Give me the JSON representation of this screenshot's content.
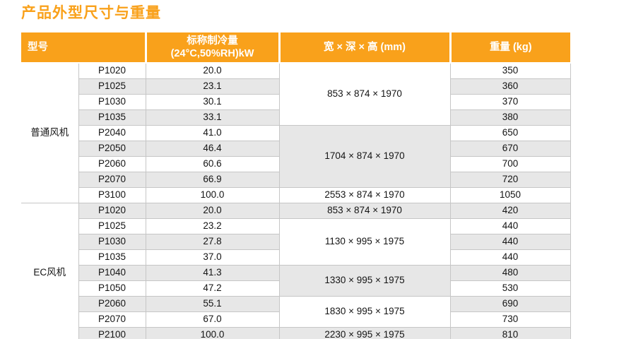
{
  "page_title": "产品外型尺寸与重量",
  "colors": {
    "accent_orange": "#F9A11B",
    "row_alt_gray": "#E7E7E7",
    "border_gray": "#C6C6C6",
    "header_text": "#FFFFFF",
    "body_text": "#141414"
  },
  "table": {
    "headers": {
      "model": "型号",
      "cooling_line1": "标称制冷量",
      "cooling_line2": "(24°C,50%RH)kW",
      "dimensions": "宽 × 深 × 高 (mm)",
      "weight": "重量 (kg)"
    },
    "groups": [
      {
        "name": "普通风机",
        "rows": [
          {
            "model": "P1020",
            "cooling": "20.0",
            "weight": "350"
          },
          {
            "model": "P1025",
            "cooling": "23.1",
            "weight": "360"
          },
          {
            "model": "P1030",
            "cooling": "30.1",
            "weight": "370"
          },
          {
            "model": "P1035",
            "cooling": "33.1",
            "weight": "380"
          },
          {
            "model": "P2040",
            "cooling": "41.0",
            "weight": "650"
          },
          {
            "model": "P2050",
            "cooling": "46.4",
            "weight": "670"
          },
          {
            "model": "P2060",
            "cooling": "60.6",
            "weight": "700"
          },
          {
            "model": "P2070",
            "cooling": "66.9",
            "weight": "720"
          },
          {
            "model": "P3100",
            "cooling": "100.0",
            "weight": "1050"
          }
        ],
        "dim_spans": [
          {
            "text": "853 × 874 × 1970",
            "rows": 4,
            "shade": "white"
          },
          {
            "text": "1704 × 874 × 1970",
            "rows": 4,
            "shade": "gray"
          },
          {
            "text": "2553 × 874 × 1970",
            "rows": 1,
            "shade": "white"
          }
        ]
      },
      {
        "name": "EC风机",
        "rows": [
          {
            "model": "P1020",
            "cooling": "20.0",
            "weight": "420"
          },
          {
            "model": "P1025",
            "cooling": "23.2",
            "weight": "440"
          },
          {
            "model": "P1030",
            "cooling": "27.8",
            "weight": "440"
          },
          {
            "model": "P1035",
            "cooling": "37.0",
            "weight": "440"
          },
          {
            "model": "P1040",
            "cooling": "41.3",
            "weight": "480"
          },
          {
            "model": "P1050",
            "cooling": "47.2",
            "weight": "530"
          },
          {
            "model": "P2060",
            "cooling": "55.1",
            "weight": "690"
          },
          {
            "model": "P2070",
            "cooling": "67.0",
            "weight": "730"
          },
          {
            "model": "P2100",
            "cooling": "100.0",
            "weight": "810"
          }
        ],
        "dim_spans": [
          {
            "text": "853 × 874 × 1970",
            "rows": 1,
            "shade": "gray"
          },
          {
            "text": "1130 × 995 × 1975",
            "rows": 3,
            "shade": "white"
          },
          {
            "text": "1330 × 995 × 1975",
            "rows": 2,
            "shade": "gray"
          },
          {
            "text": "1830 × 995 × 1975",
            "rows": 2,
            "shade": "white"
          },
          {
            "text": "2230 × 995 × 1975",
            "rows": 1,
            "shade": "gray"
          }
        ]
      }
    ]
  }
}
